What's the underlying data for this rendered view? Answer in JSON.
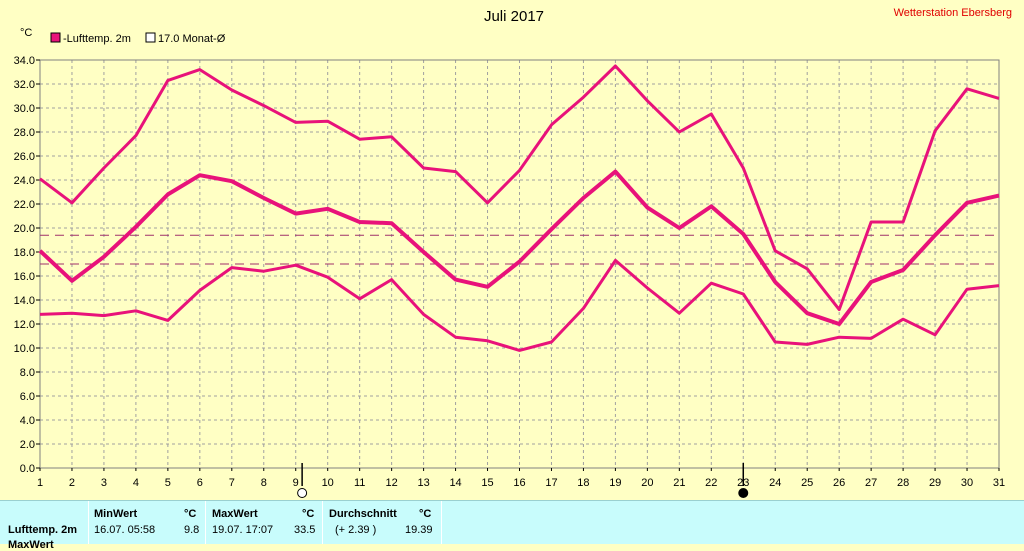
{
  "title": "Juli 2017",
  "station": "Wetterstation Ebersberg",
  "chart_data": {
    "type": "line",
    "y_unit": "°C",
    "ylim": [
      0,
      34
    ],
    "y_ticks": [
      "0.0",
      "2.0",
      "4.0",
      "6.0",
      "8.0",
      "10.0",
      "12.0",
      "14.0",
      "16.0",
      "18.0",
      "20.0",
      "22.0",
      "24.0",
      "26.0",
      "28.0",
      "30.0",
      "32.0",
      "34.0"
    ],
    "x": [
      1,
      2,
      3,
      4,
      5,
      6,
      7,
      8,
      9,
      10,
      11,
      12,
      13,
      14,
      15,
      16,
      17,
      18,
      19,
      20,
      21,
      22,
      23,
      24,
      25,
      26,
      27,
      28,
      29,
      30,
      31
    ],
    "grid": true,
    "legend": [
      {
        "label": "-Lufttemp. 2m",
        "filled": true
      },
      {
        "label": "17.0 Monat-Ø",
        "filled": false
      }
    ],
    "series": [
      {
        "role": "max",
        "values": [
          24.1,
          22.1,
          25.0,
          27.7,
          32.3,
          33.2,
          31.5,
          30.2,
          28.8,
          28.9,
          27.4,
          27.6,
          25.0,
          24.7,
          22.1,
          24.8,
          28.6,
          30.9,
          33.5,
          30.6,
          28.0,
          29.5,
          25.0,
          18.1,
          16.6,
          13.2,
          20.5,
          20.5,
          28.1,
          31.6,
          30.8
        ]
      },
      {
        "role": "mean",
        "values": [
          18.1,
          15.6,
          17.6,
          20.1,
          22.8,
          24.4,
          23.9,
          22.5,
          21.2,
          21.6,
          20.5,
          20.4,
          18.0,
          15.7,
          15.1,
          17.2,
          19.9,
          22.5,
          24.7,
          21.7,
          20.0,
          21.8,
          19.5,
          15.5,
          12.9,
          12.0,
          15.5,
          16.5,
          19.4,
          22.1,
          22.7
        ]
      },
      {
        "role": "min",
        "values": [
          12.8,
          12.9,
          12.7,
          13.1,
          12.3,
          14.8,
          16.7,
          16.4,
          16.9,
          15.9,
          14.1,
          15.7,
          12.8,
          10.9,
          10.6,
          9.8,
          10.5,
          13.3,
          17.3,
          15.0,
          12.9,
          15.4,
          14.5,
          10.5,
          10.3,
          10.9,
          10.8,
          12.4,
          11.1,
          14.9,
          15.2
        ]
      }
    ],
    "ref_lines": [
      17.0,
      19.4
    ],
    "moon_markers": [
      {
        "x": 9.2,
        "phase": "full"
      },
      {
        "x": 23.0,
        "phase": "new"
      }
    ],
    "line_color": "#e8127a",
    "ref_color": "#a0306a"
  },
  "stats": {
    "row_label": "Lufttemp. 2m",
    "row_label_2": "MaxWert",
    "min": {
      "header": "MinWert",
      "unit": "°C",
      "date": "16.07.  05:58",
      "value": "9.8"
    },
    "max": {
      "header": "MaxWert",
      "unit": "°C",
      "date": "19.07.  17:07",
      "value": "33.5"
    },
    "avg": {
      "header": "Durchschnitt",
      "unit": "°C",
      "delta": "(+ 2.39 )",
      "value": "19.39"
    }
  }
}
